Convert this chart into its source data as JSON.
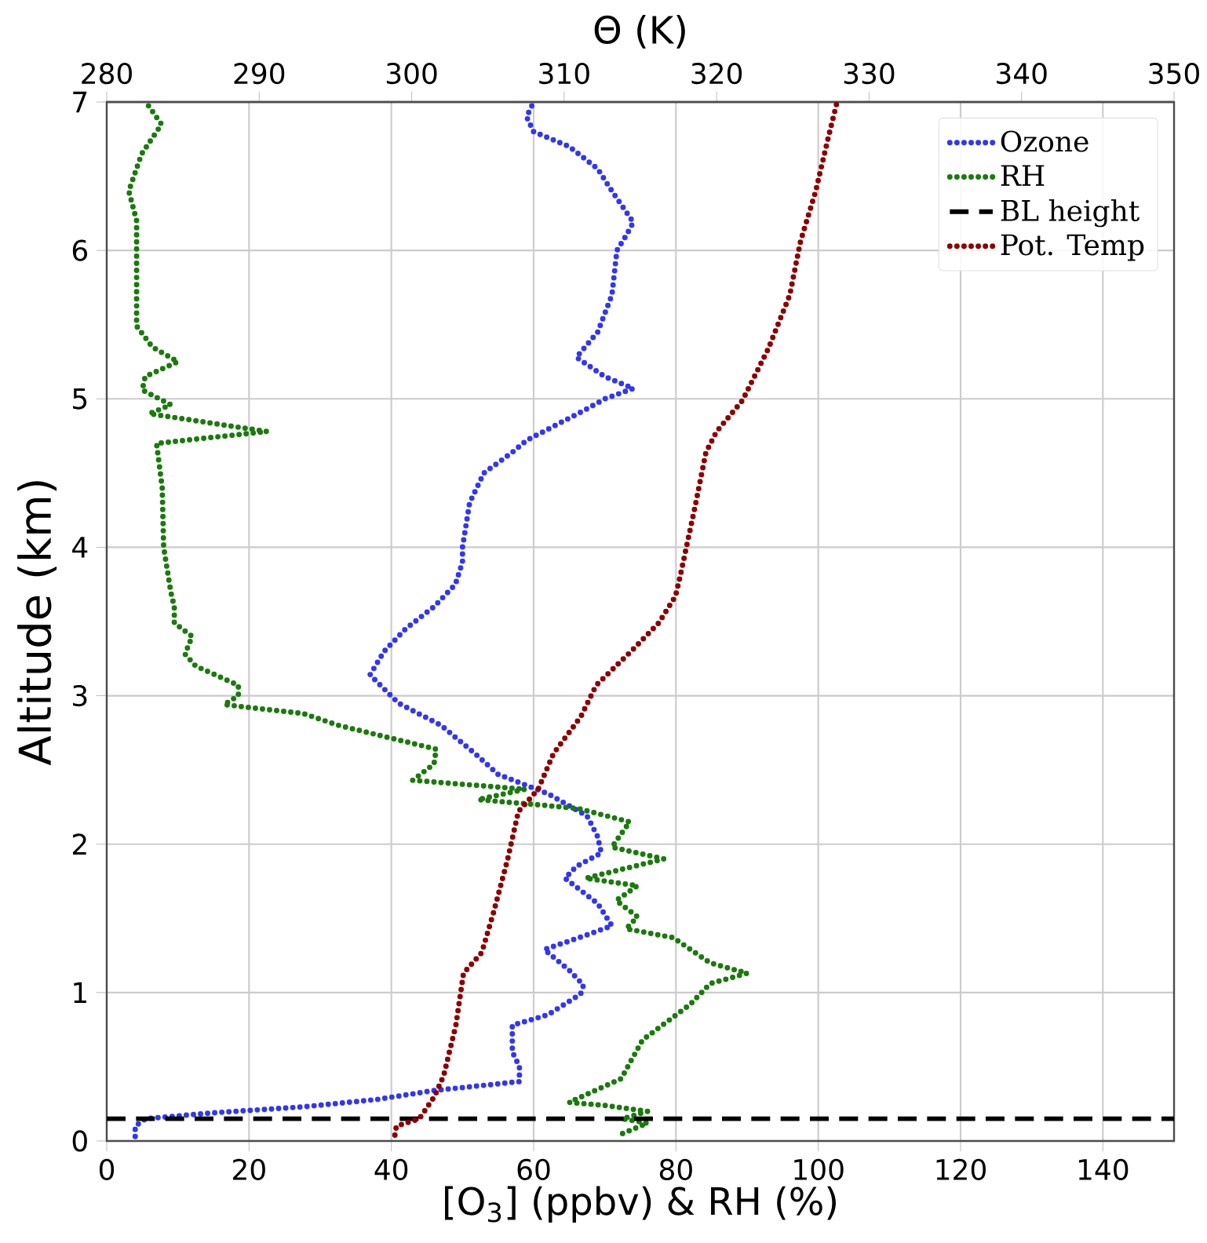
{
  "chart_data": {
    "type": "line",
    "xlabel": "[O$_{3}$] (ppbv) & RH (%)",
    "ylabel": "Altitude (km)",
    "x2label": "Θ (K)",
    "xlim": [
      0,
      150
    ],
    "xticks": [
      0,
      20,
      40,
      60,
      80,
      100,
      120,
      140
    ],
    "x2lim": [
      280,
      350
    ],
    "x2ticks": [
      280,
      290,
      300,
      310,
      320,
      330,
      340,
      350
    ],
    "ylim": [
      0,
      7
    ],
    "yticks": [
      0,
      1,
      2,
      3,
      4,
      5,
      6,
      7
    ],
    "grid": true,
    "legend": "top right",
    "line_style": "dotted",
    "series": [
      {
        "name": "Ozone",
        "color": "#3236f0",
        "x": [
          4,
          4,
          5.5,
          15,
          27.6,
          38,
          46,
          58,
          58,
          57,
          57,
          62,
          66.6,
          67,
          65,
          61.5,
          67,
          71,
          69,
          64.4,
          66,
          69.5,
          69,
          67.5,
          62,
          55,
          52,
          47,
          41,
          37,
          39,
          42,
          46,
          49,
          50,
          50,
          51,
          53,
          57,
          59,
          63,
          67,
          70,
          74,
          70,
          66,
          69,
          71,
          71.7,
          73,
          74,
          71,
          69,
          65,
          60,
          59,
          60
        ],
        "values": [
          0.03,
          0.1,
          0.15,
          0.19,
          0.23,
          0.28,
          0.34,
          0.4,
          0.5,
          0.6,
          0.78,
          0.85,
          0.99,
          1.05,
          1.15,
          1.29,
          1.38,
          1.45,
          1.6,
          1.77,
          1.85,
          1.94,
          2.05,
          2.19,
          2.34,
          2.47,
          2.6,
          2.8,
          2.95,
          3.14,
          3.3,
          3.45,
          3.6,
          3.75,
          3.9,
          4.0,
          4.3,
          4.5,
          4.64,
          4.72,
          4.82,
          4.92,
          5.0,
          5.07,
          5.15,
          5.28,
          5.45,
          5.7,
          6.0,
          6.1,
          6.19,
          6.4,
          6.55,
          6.7,
          6.8,
          6.9,
          7.0
        ]
      },
      {
        "name": "RH",
        "color": "#1a7a0c",
        "x": [
          72.5,
          76,
          72.5,
          76,
          70,
          65,
          72.3,
          75.3,
          82,
          84.8,
          90,
          84.8,
          79.6,
          73,
          74.6,
          71.6,
          74.6,
          67.3,
          78.3,
          71,
          73.5,
          66.2,
          61.8,
          52.2,
          58.8,
          43,
          46,
          46.3,
          32.6,
          27.6,
          16.5,
          18.5,
          18.5,
          12.5,
          11,
          12,
          9.5,
          9.5,
          9,
          8,
          7.8,
          7,
          22.5,
          6,
          9,
          5,
          5.4,
          10,
          6.4,
          4.2,
          4.2,
          3.1,
          4.9,
          7.7,
          5.5
        ],
        "values": [
          0.05,
          0.12,
          0.15,
          0.2,
          0.24,
          0.26,
          0.42,
          0.68,
          0.92,
          1.06,
          1.13,
          1.2,
          1.37,
          1.43,
          1.51,
          1.62,
          1.72,
          1.77,
          1.9,
          1.98,
          2.15,
          2.24,
          2.26,
          2.3,
          2.37,
          2.43,
          2.54,
          2.64,
          2.8,
          2.88,
          2.94,
          3.0,
          3.07,
          3.2,
          3.28,
          3.4,
          3.49,
          3.6,
          3.7,
          4.0,
          4.4,
          4.7,
          4.78,
          4.9,
          4.96,
          5.06,
          5.15,
          5.25,
          5.35,
          5.49,
          6.2,
          6.4,
          6.65,
          6.85,
          7.0
        ]
      },
      {
        "name": "Pot. Temp",
        "color": "#8b0000",
        "axis": "x2",
        "x": [
          298.9,
          299.0,
          300.5,
          301.5,
          302.1,
          302.9,
          303.4,
          304.6,
          305.4,
          306.3,
          307,
          308.3,
          309.3,
          311.1,
          312.1,
          314.5,
          316.2,
          317.3,
          317.6,
          318.6,
          319.3,
          320,
          321.7,
          323.4,
          324.8,
          325.5,
          326.5,
          327.3,
          327.9
        ],
        "values": [
          0.04,
          0.1,
          0.15,
          0.3,
          0.44,
          0.78,
          1.13,
          1.27,
          1.55,
          1.9,
          2.22,
          2.37,
          2.61,
          2.86,
          3.07,
          3.31,
          3.49,
          3.67,
          3.8,
          4.28,
          4.64,
          4.78,
          4.99,
          5.34,
          5.7,
          6.06,
          6.4,
          6.75,
          7.0
        ]
      }
    ],
    "ref_lines": [
      {
        "axis": "y",
        "value": 0.15,
        "label": "BL height",
        "color": "#000000",
        "line_style": "dashed"
      }
    ]
  }
}
